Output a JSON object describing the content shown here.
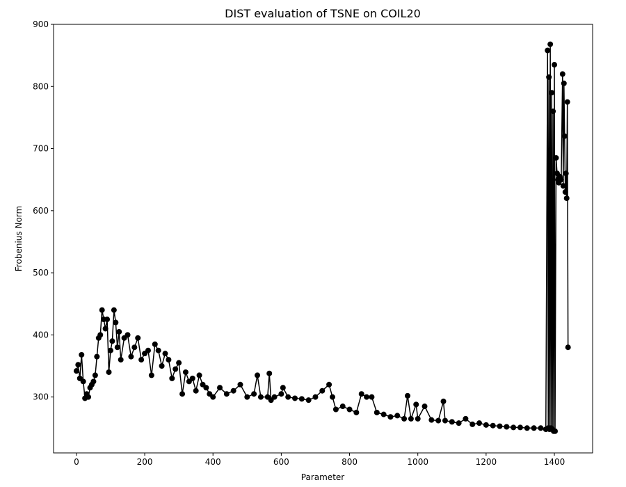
{
  "chart_data": {
    "type": "line",
    "title": "DIST evaluation of TSNE on COIL20",
    "x_label": "Parameter",
    "y_label": "Frobenius Norm",
    "x": [
      0,
      5,
      10,
      15,
      20,
      25,
      30,
      35,
      40,
      45,
      50,
      55,
      60,
      65,
      70,
      75,
      80,
      85,
      90,
      95,
      100,
      105,
      110,
      115,
      120,
      125,
      130,
      140,
      150,
      160,
      170,
      180,
      190,
      200,
      210,
      220,
      230,
      240,
      250,
      260,
      270,
      280,
      290,
      300,
      310,
      320,
      330,
      340,
      350,
      360,
      370,
      380,
      390,
      400,
      420,
      440,
      460,
      480,
      500,
      520,
      530,
      540,
      560,
      565,
      570,
      580,
      600,
      605,
      620,
      640,
      660,
      680,
      700,
      720,
      740,
      750,
      760,
      780,
      800,
      820,
      835,
      850,
      865,
      880,
      900,
      920,
      940,
      960,
      970,
      980,
      995,
      1000,
      1020,
      1040,
      1060,
      1075,
      1080,
      1100,
      1120,
      1140,
      1160,
      1180,
      1200,
      1220,
      1240,
      1260,
      1280,
      1300,
      1320,
      1340,
      1360,
      1375,
      1380,
      1382,
      1384,
      1386,
      1388,
      1390,
      1392,
      1394,
      1396,
      1398,
      1400,
      1402,
      1405,
      1408,
      1410,
      1413,
      1416,
      1420,
      1424,
      1426,
      1428,
      1430,
      1432,
      1434,
      1436,
      1438,
      1440
    ],
    "series": [
      {
        "name": "DIST",
        "color": "#000000",
        "values": [
          342,
          352,
          330,
          368,
          325,
          298,
          305,
          300,
          315,
          320,
          325,
          335,
          365,
          395,
          400,
          440,
          425,
          410,
          425,
          340,
          375,
          390,
          440,
          420,
          380,
          405,
          360,
          395,
          400,
          365,
          380,
          395,
          360,
          370,
          375,
          335,
          385,
          375,
          350,
          370,
          360,
          330,
          345,
          355,
          305,
          340,
          325,
          330,
          310,
          335,
          320,
          315,
          305,
          300,
          315,
          305,
          310,
          320,
          300,
          305,
          335,
          300,
          300,
          338,
          295,
          300,
          305,
          315,
          300,
          298,
          297,
          295,
          300,
          310,
          320,
          300,
          280,
          285,
          280,
          275,
          305,
          300,
          300,
          275,
          272,
          268,
          270,
          265,
          302,
          265,
          288,
          265,
          285,
          263,
          262,
          293,
          262,
          260,
          258,
          265,
          256,
          258,
          255,
          254,
          253,
          252,
          251,
          251,
          250,
          250,
          250,
          248,
          858,
          250,
          815,
          248,
          868,
          250,
          790,
          248,
          760,
          245,
          835,
          245,
          685,
          660,
          650,
          645,
          655,
          650,
          820,
          640,
          805,
          720,
          630,
          660,
          620,
          775,
          380
        ]
      }
    ],
    "xlim": [
      -67,
      1512
    ],
    "ylim": [
      210,
      900
    ],
    "xticks": [
      0,
      200,
      400,
      600,
      800,
      1000,
      1200,
      1400
    ],
    "yticks": [
      300,
      400,
      500,
      600,
      700,
      800,
      900
    ]
  }
}
